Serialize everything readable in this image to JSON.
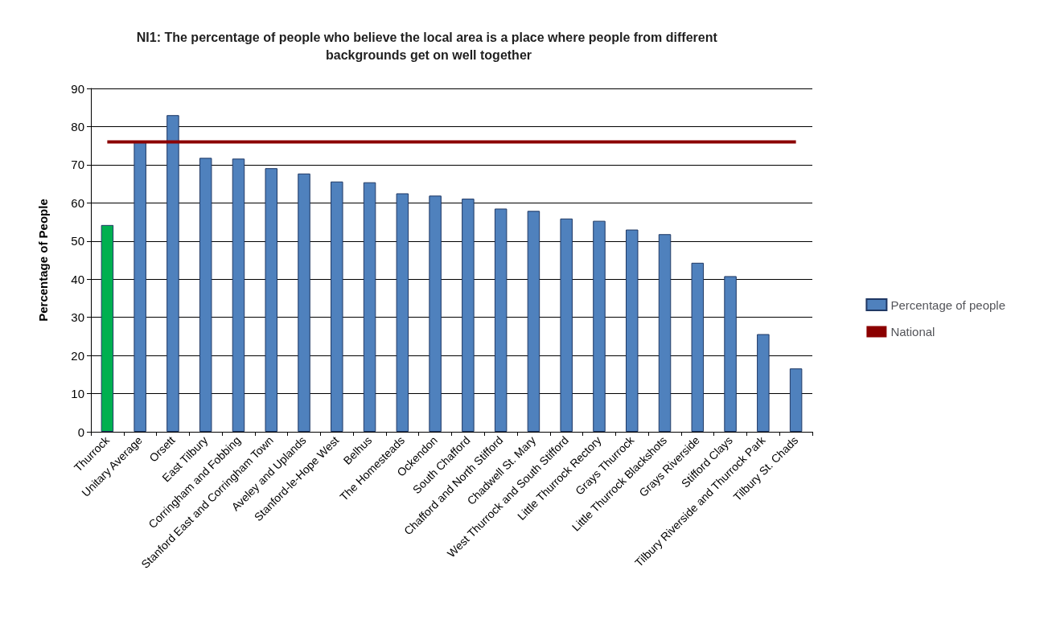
{
  "chart_data": {
    "type": "bar",
    "title": "NI1: The percentage of people who believe the local area is a place where people from different backgrounds get on well together",
    "ylabel": "Percentage of People",
    "categories": [
      "Thurrock",
      "Unitary Average",
      "Orsett",
      "East Tilbury",
      "Corringham and Fobbing",
      "Stanford East and Corringham Town",
      "Aveley and Uplands",
      "Stanford-le-Hope West",
      "Belhus",
      "The Homesteads",
      "Ockendon",
      "South Chafford",
      "Chafford and North Stifford",
      "Chadwell St. Mary",
      "West Thurrock and South Stifford",
      "Little Thurrock Rectory",
      "Grays Thurrock",
      "Little Thurrock Blackshots",
      "Grays Riverside",
      "Stifford Clays",
      "Tilbury Riverside and Thurrock Park",
      "Tilbury St. Chads"
    ],
    "series": [
      {
        "name": "Percentage of people",
        "color": "#4f81bd",
        "colors": [
          "#00b050",
          "#4f81bd",
          "#4f81bd",
          "#4f81bd",
          "#4f81bd",
          "#4f81bd",
          "#4f81bd",
          "#4f81bd",
          "#4f81bd",
          "#4f81bd",
          "#4f81bd",
          "#4f81bd",
          "#4f81bd",
          "#4f81bd",
          "#4f81bd",
          "#4f81bd",
          "#4f81bd",
          "#4f81bd",
          "#4f81bd",
          "#4f81bd",
          "#4f81bd",
          "#4f81bd"
        ],
        "values": [
          54.2,
          76,
          83,
          71.8,
          71.6,
          69.1,
          67.7,
          65.6,
          65.4,
          62.5,
          61.9,
          61.1,
          58.5,
          57.9,
          55.9,
          55.3,
          53,
          51.8,
          44.3,
          40.8,
          25.6,
          16.6
        ]
      },
      {
        "name": "National",
        "type": "line",
        "color": "#8b0000",
        "values": [
          76,
          76,
          76,
          76,
          76,
          76,
          76,
          76,
          76,
          76,
          76,
          76,
          76,
          76,
          76,
          76,
          76,
          76,
          76,
          76,
          76,
          76
        ]
      }
    ],
    "ylim": [
      0,
      90
    ],
    "yticks": [
      0,
      10,
      20,
      30,
      40,
      50,
      60,
      70,
      80,
      90
    ],
    "grid": "y",
    "legend": "right",
    "marker": "none"
  }
}
